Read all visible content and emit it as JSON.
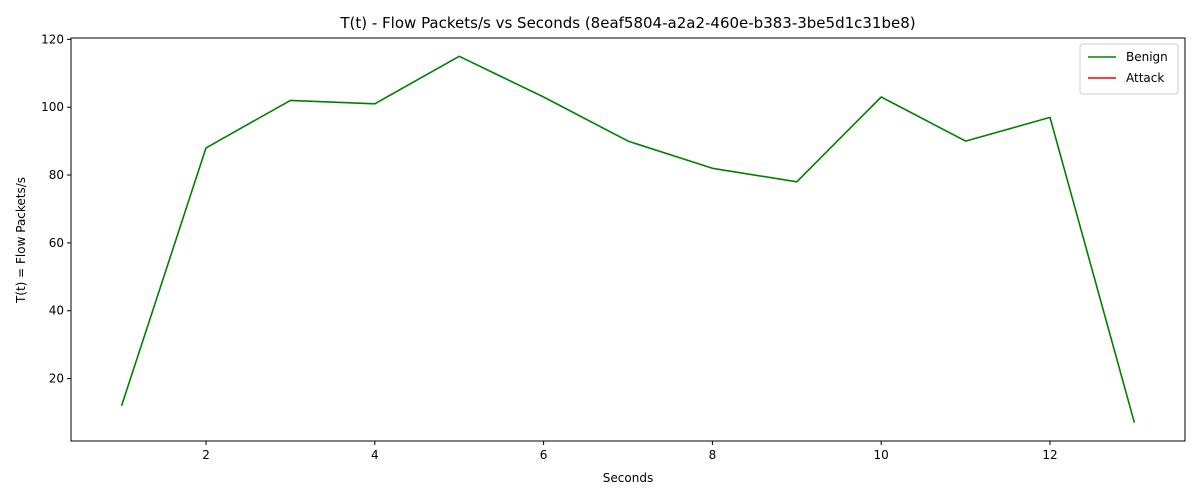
{
  "chart_data": {
    "type": "line",
    "title": "T(t) - Flow Packets/s vs Seconds (8eaf5804-a2a2-460e-b383-3be5d1c31be8)",
    "xlabel": "Seconds",
    "ylabel": "T(t) = Flow Packets/s",
    "xlim": [
      0.4,
      13.6
    ],
    "ylim": [
      1.6,
      120.4
    ],
    "xticks": [
      2,
      4,
      6,
      8,
      10,
      12
    ],
    "yticks": [
      20,
      40,
      60,
      80,
      100,
      120
    ],
    "grid": false,
    "legend_position": "top-right",
    "series": [
      {
        "name": "Benign",
        "color": "#008000",
        "x": [
          1,
          2,
          3,
          4,
          5,
          6,
          7,
          8,
          9,
          10,
          11,
          12,
          13
        ],
        "y": [
          12,
          88,
          102,
          101,
          115,
          103,
          90,
          82,
          78,
          103,
          90,
          97,
          7
        ]
      },
      {
        "name": "Attack",
        "color": "#ff0000",
        "x": [],
        "y": []
      }
    ]
  }
}
